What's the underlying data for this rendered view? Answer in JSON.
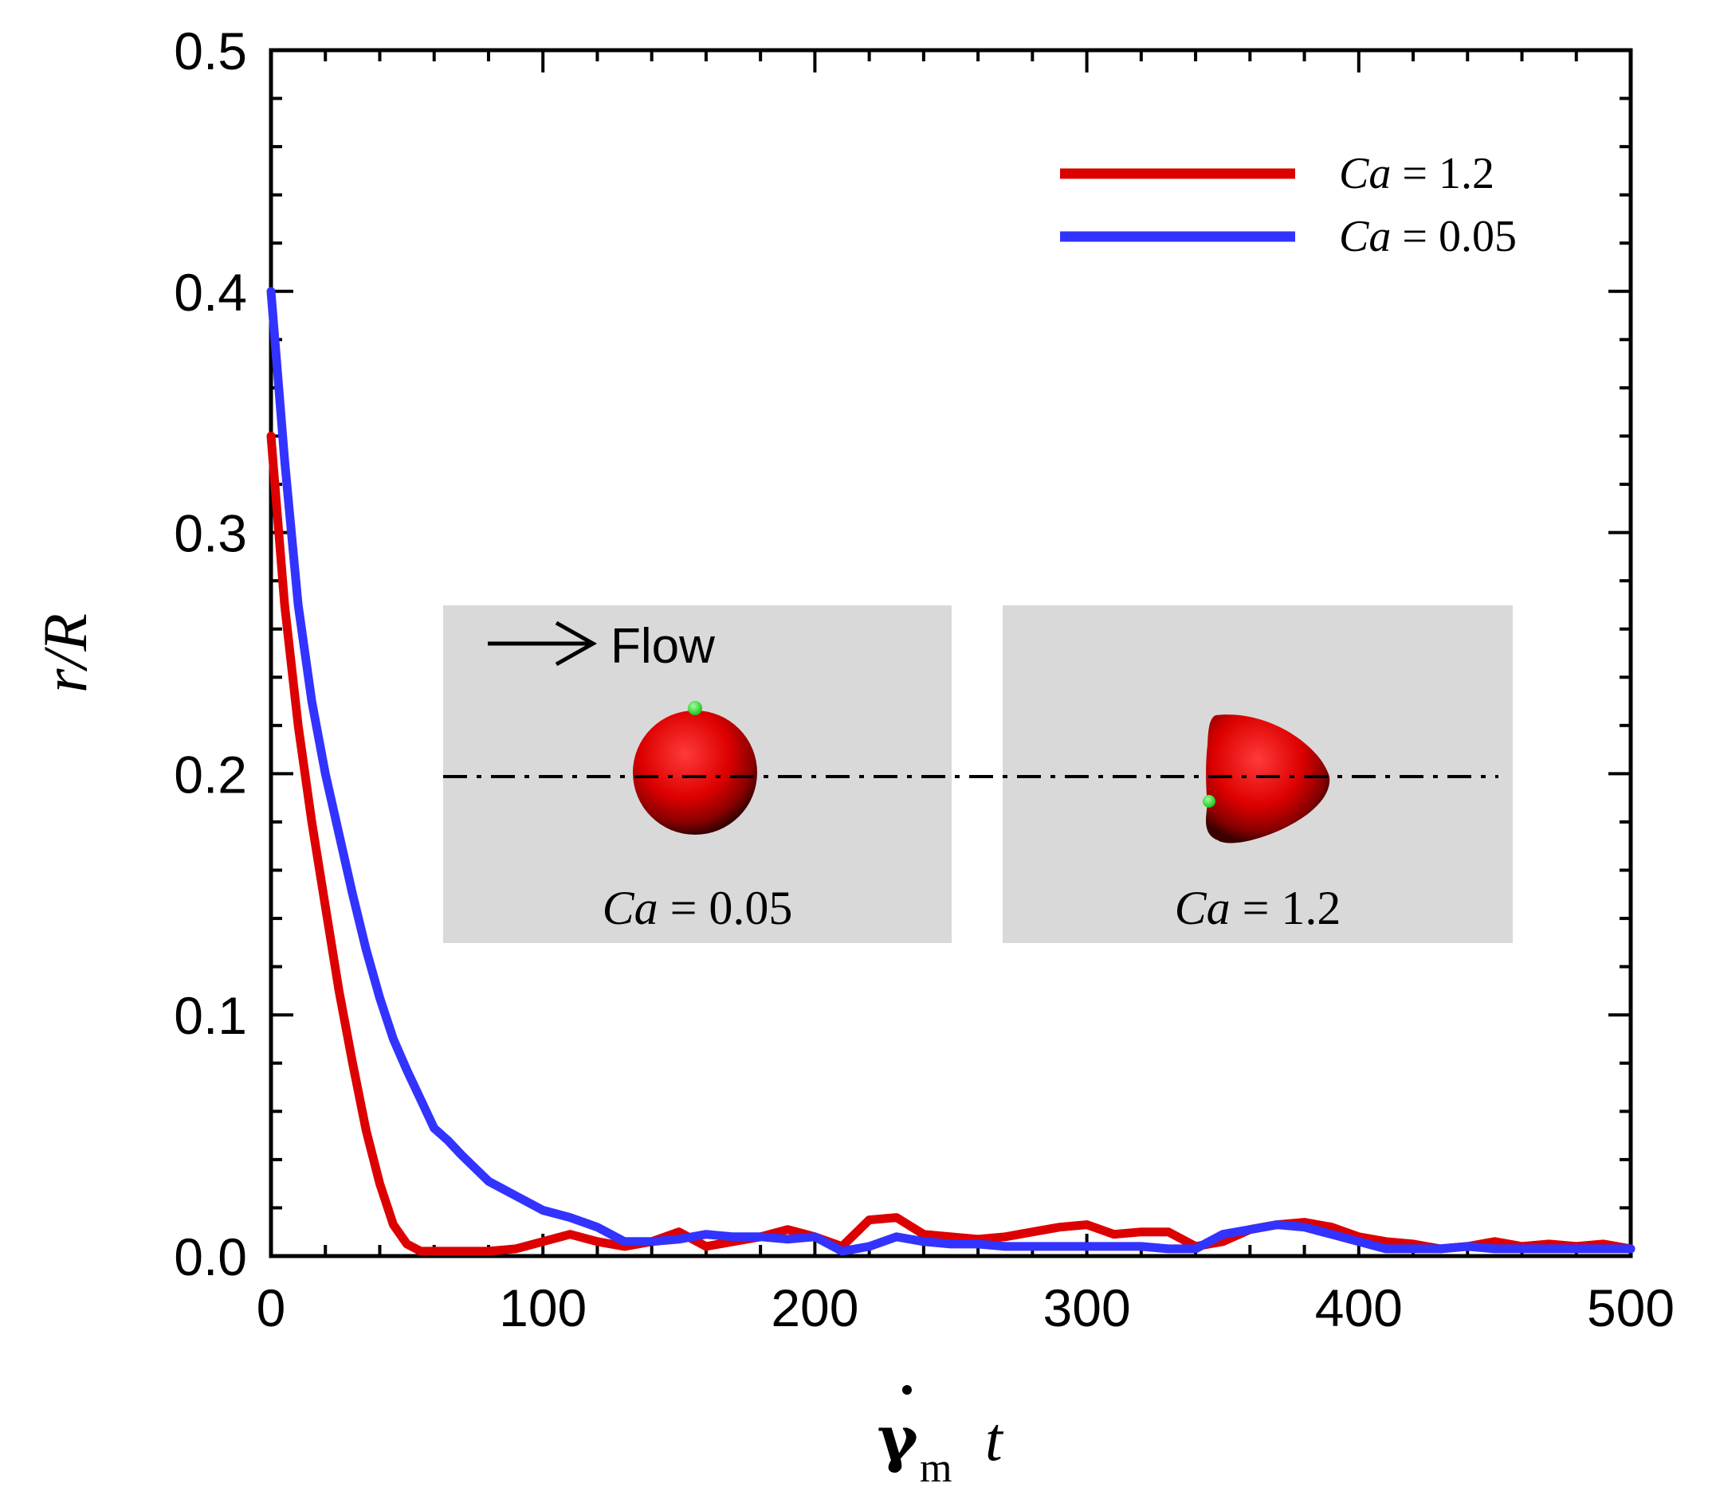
{
  "chart_data": {
    "type": "line",
    "title": "",
    "xlabel": {
      "main": "γ",
      "sub": "m",
      "tail": "t"
    },
    "ylabel": "r/R",
    "xlim": [
      0,
      500
    ],
    "ylim": [
      0,
      0.5
    ],
    "xticks": [
      "0",
      "100",
      "200",
      "300",
      "400",
      "500"
    ],
    "yticks": [
      "0.0",
      "0.1",
      "0.2",
      "0.3",
      "0.4",
      "0.5"
    ],
    "xtick_values": [
      0,
      100,
      200,
      300,
      400,
      500
    ],
    "ytick_values": [
      0,
      0.1,
      0.2,
      0.3,
      0.4,
      0.5
    ],
    "legend_position": "top-right",
    "series": [
      {
        "name": "Ca = 1.2",
        "label_italic": "Ca",
        "label_rest": " = 1.2",
        "color": "#dd0000",
        "x": [
          0,
          5,
          10,
          15,
          20,
          25,
          30,
          35,
          40,
          45,
          50,
          55,
          60,
          70,
          80,
          90,
          100,
          110,
          120,
          130,
          140,
          150,
          160,
          170,
          180,
          190,
          200,
          210,
          220,
          230,
          240,
          250,
          260,
          270,
          280,
          290,
          300,
          310,
          320,
          330,
          340,
          350,
          360,
          370,
          380,
          390,
          400,
          410,
          420,
          430,
          440,
          450,
          460,
          470,
          480,
          490,
          500
        ],
        "y": [
          0.34,
          0.27,
          0.22,
          0.18,
          0.145,
          0.11,
          0.08,
          0.052,
          0.03,
          0.013,
          0.005,
          0.002,
          0.002,
          0.002,
          0.002,
          0.003,
          0.006,
          0.009,
          0.006,
          0.004,
          0.006,
          0.01,
          0.004,
          0.006,
          0.008,
          0.011,
          0.008,
          0.004,
          0.015,
          0.016,
          0.009,
          0.008,
          0.007,
          0.008,
          0.01,
          0.012,
          0.013,
          0.009,
          0.01,
          0.01,
          0.004,
          0.006,
          0.011,
          0.013,
          0.014,
          0.012,
          0.008,
          0.006,
          0.005,
          0.003,
          0.004,
          0.006,
          0.004,
          0.005,
          0.004,
          0.005,
          0.003
        ]
      },
      {
        "name": "Ca = 0.05",
        "label_italic": "Ca",
        "label_rest": " = 0.05",
        "color": "#3333ff",
        "x": [
          0,
          5,
          10,
          15,
          20,
          25,
          30,
          35,
          40,
          45,
          50,
          55,
          60,
          65,
          70,
          80,
          90,
          100,
          110,
          120,
          130,
          140,
          150,
          160,
          170,
          180,
          190,
          200,
          210,
          220,
          230,
          240,
          250,
          260,
          270,
          280,
          290,
          300,
          310,
          320,
          330,
          340,
          350,
          360,
          370,
          380,
          390,
          400,
          410,
          420,
          430,
          440,
          450,
          460,
          470,
          480,
          490,
          500
        ],
        "y": [
          0.4,
          0.33,
          0.27,
          0.23,
          0.2,
          0.175,
          0.15,
          0.127,
          0.107,
          0.09,
          0.077,
          0.065,
          0.053,
          0.048,
          0.042,
          0.031,
          0.025,
          0.019,
          0.016,
          0.012,
          0.006,
          0.006,
          0.007,
          0.009,
          0.008,
          0.008,
          0.007,
          0.008,
          0.002,
          0.004,
          0.008,
          0.006,
          0.005,
          0.005,
          0.004,
          0.004,
          0.004,
          0.004,
          0.004,
          0.004,
          0.003,
          0.003,
          0.009,
          0.011,
          0.013,
          0.012,
          0.009,
          0.006,
          0.003,
          0.003,
          0.003,
          0.004,
          0.003,
          0.003,
          0.003,
          0.003,
          0.003,
          0.003
        ]
      }
    ],
    "insets": [
      {
        "label_italic": "Ca",
        "label_rest": " = 0.05",
        "flow_label": "Flow"
      },
      {
        "label_italic": "Ca",
        "label_rest": " = 1.2"
      }
    ]
  }
}
